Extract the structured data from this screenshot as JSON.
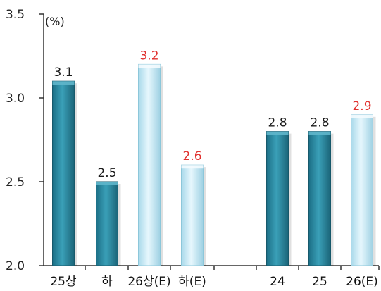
{
  "chart_data": {
    "type": "bar",
    "unit_label": "(%)",
    "categories": [
      "25상",
      "하",
      "26상(E)",
      "하(E)",
      "24",
      "25",
      "26(E)"
    ],
    "values": [
      3.1,
      2.5,
      3.2,
      2.6,
      2.8,
      2.8,
      2.9
    ],
    "value_labels": [
      "3.1",
      "2.5",
      "3.2",
      "2.6",
      "2.8",
      "2.8",
      "2.9"
    ],
    "estimate": [
      false,
      false,
      true,
      true,
      false,
      false,
      true
    ],
    "ylim": [
      2.0,
      3.5
    ],
    "yticks": [
      "2.0",
      "2.5",
      "3.0",
      "3.5"
    ],
    "grid": false,
    "colors": {
      "actual_bar": "#2f8fa6",
      "estimate_bar": "#bfe6f3",
      "actual_label": "#1a1a1a",
      "estimate_label": "#e0312e"
    }
  }
}
